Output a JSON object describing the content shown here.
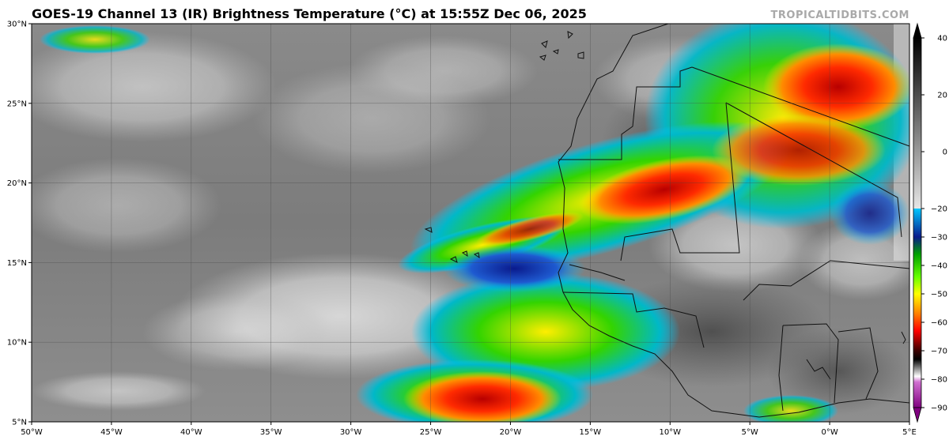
{
  "title": "GOES-19 Channel 13 (IR) Brightness Temperature (°C) at 15:55Z Dec 06, 2025",
  "watermark": "TROPICALTIDBITS.COM",
  "map": {
    "lon_range": [
      -50,
      5
    ],
    "lat_range": [
      5,
      30
    ],
    "lon_ticks": [
      {
        "value": -50,
        "label": "50°W"
      },
      {
        "value": -45,
        "label": "45°W"
      },
      {
        "value": -40,
        "label": "40°W"
      },
      {
        "value": -35,
        "label": "35°W"
      },
      {
        "value": -30,
        "label": "30°W"
      },
      {
        "value": -25,
        "label": "25°W"
      },
      {
        "value": -20,
        "label": "20°W"
      },
      {
        "value": -15,
        "label": "15°W"
      },
      {
        "value": -10,
        "label": "10°W"
      },
      {
        "value": -5,
        "label": "5°W"
      },
      {
        "value": 0,
        "label": "0°W"
      },
      {
        "value": 5,
        "label": "5°E"
      }
    ],
    "lat_ticks": [
      {
        "value": 30,
        "label": "30°N"
      },
      {
        "value": 25,
        "label": "25°N"
      },
      {
        "value": 20,
        "label": "20°N"
      },
      {
        "value": 15,
        "label": "15°N"
      },
      {
        "value": 10,
        "label": "10°N"
      },
      {
        "value": 5,
        "label": "5°N"
      }
    ],
    "colorbar": {
      "range": [
        -90,
        40
      ],
      "ticks": [
        40,
        20,
        0,
        -20,
        -30,
        -40,
        -50,
        -60,
        -70,
        -80,
        -90
      ],
      "stops": [
        {
          "value": 40,
          "color": "#000000"
        },
        {
          "value": -20,
          "color": "#e6e6e6"
        },
        {
          "value": -20.01,
          "color": "#00c8ff"
        },
        {
          "value": -30,
          "color": "#0a1a8c"
        },
        {
          "value": -36,
          "color": "#00a000"
        },
        {
          "value": -44,
          "color": "#66ff00"
        },
        {
          "value": -50,
          "color": "#ffff00"
        },
        {
          "value": -57,
          "color": "#ff7f00"
        },
        {
          "value": -63,
          "color": "#ff0000"
        },
        {
          "value": -70,
          "color": "#3a0000"
        },
        {
          "value": -73,
          "color": "#000000"
        },
        {
          "value": -79,
          "color": "#ffffff"
        },
        {
          "value": -81,
          "color": "#d070d0"
        },
        {
          "value": -90,
          "color": "#800080"
        }
      ]
    }
  }
}
